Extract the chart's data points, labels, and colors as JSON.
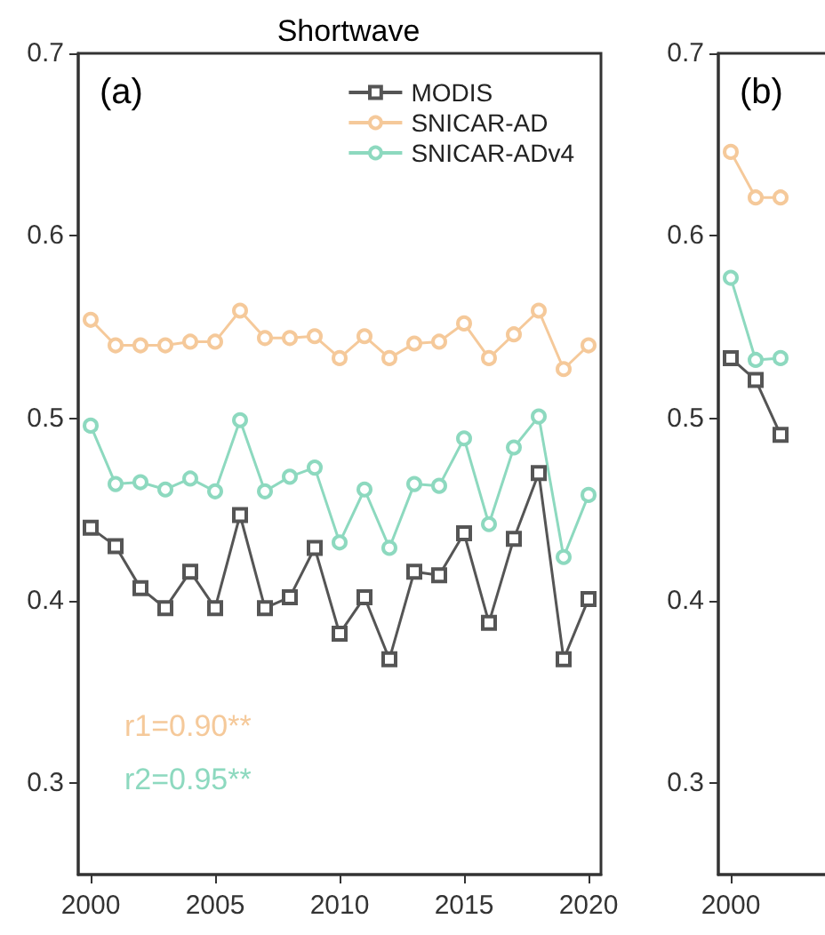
{
  "chart_data": [
    {
      "type": "line",
      "title": "Shortwave",
      "x": [
        2000,
        2001,
        2002,
        2003,
        2004,
        2005,
        2006,
        2007,
        2008,
        2009,
        2010,
        2011,
        2012,
        2013,
        2014,
        2015,
        2016,
        2017,
        2018,
        2019,
        2020
      ],
      "xlim": [
        1999.5,
        2020.5
      ],
      "xticks": [
        2000,
        2005,
        2010,
        2015,
        2020
      ],
      "ylim": [
        0.25,
        0.7
      ],
      "yticks": [
        0.3,
        0.4,
        0.5,
        0.6,
        0.7
      ],
      "grid": false,
      "legend": "top right",
      "annotations": [
        "(a)",
        "r1=0.90**",
        "r2=0.95**"
      ],
      "series": [
        {
          "name": "MODIS",
          "color": "#555555",
          "marker": "square",
          "values": [
            0.44,
            0.43,
            0.407,
            0.396,
            0.416,
            0.396,
            0.447,
            0.396,
            0.402,
            0.429,
            0.382,
            0.402,
            0.368,
            0.416,
            0.414,
            0.437,
            0.388,
            0.434,
            0.47,
            0.368,
            0.401
          ]
        },
        {
          "name": "SNICAR-AD",
          "color": "#f5c99a",
          "marker": "circle",
          "values": [
            0.554,
            0.54,
            0.54,
            0.54,
            0.542,
            0.542,
            0.559,
            0.544,
            0.544,
            0.545,
            0.533,
            0.545,
            0.533,
            0.541,
            0.542,
            0.552,
            0.533,
            0.546,
            0.559,
            0.527,
            0.54
          ]
        },
        {
          "name": "SNICAR-ADv4",
          "color": "#8dd9bf",
          "marker": "circle",
          "values": [
            0.496,
            0.464,
            0.465,
            0.461,
            0.467,
            0.46,
            0.499,
            0.46,
            0.468,
            0.473,
            0.432,
            0.461,
            0.429,
            0.464,
            0.463,
            0.489,
            0.442,
            0.484,
            0.501,
            0.424,
            0.458
          ]
        }
      ]
    },
    {
      "type": "line",
      "categories": [
        "2000",
        null,
        null,
        null,
        null,
        null,
        null,
        null,
        null,
        null,
        null,
        null,
        null,
        null,
        null,
        null,
        null,
        null,
        null,
        null,
        null
      ],
      "ylim": [
        0.25,
        0.7
      ],
      "yticks": [
        0.3,
        0.4,
        0.5,
        0.6,
        0.7
      ],
      "grid": false,
      "legend": false,
      "annotations": [
        "(b)"
      ],
      "series": [
        {
          "color": "#555555",
          "marker": "square",
          "values": [
            0.533,
            0.521,
            0.491,
            null,
            null,
            null,
            null,
            null,
            null,
            null,
            null,
            null,
            null,
            null,
            null,
            null,
            null,
            null,
            null,
            null,
            null
          ]
        },
        {
          "color": "#f5c99a",
          "marker": "circle",
          "values": [
            0.646,
            0.621,
            0.621,
            null,
            null,
            null,
            null,
            null,
            null,
            null,
            null,
            null,
            null,
            null,
            null,
            null,
            null,
            null,
            null,
            null,
            null
          ]
        },
        {
          "color": "#8dd9bf",
          "marker": "circle",
          "values": [
            0.577,
            0.532,
            0.533,
            null,
            null,
            null,
            null,
            null,
            null,
            null,
            null,
            null,
            null,
            null,
            null,
            null,
            null,
            null,
            null,
            null,
            null
          ]
        }
      ]
    }
  ]
}
